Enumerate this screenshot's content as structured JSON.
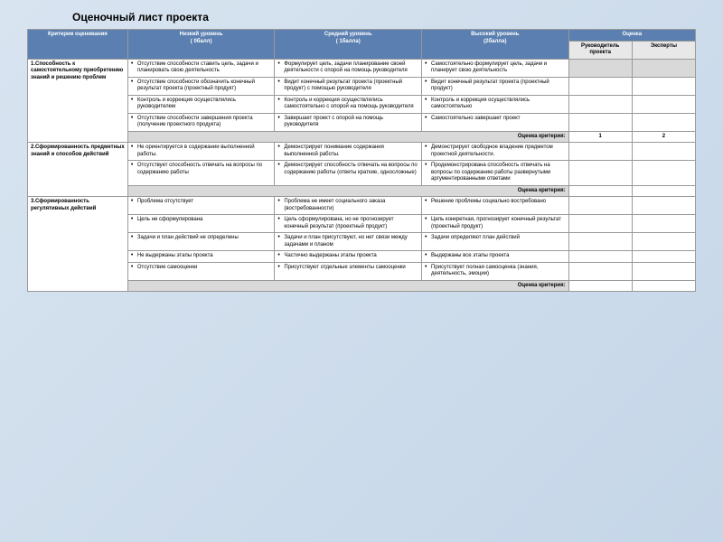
{
  "title": "Оценочный лист проекта",
  "headers": {
    "criteria": "Критерии оценивания",
    "low": "Низкий уровень",
    "low_pts": "( 0балл)",
    "mid": "Средний уровень",
    "mid_pts": "( 1балла)",
    "high": "Высокий уровень",
    "high_pts": "(2балла)",
    "eval": "Оценка",
    "eval_lead": "Руководитель проекта",
    "eval_exp": "Эксперты"
  },
  "score_label": "Оценка критерия:",
  "one": "1",
  "two": "2",
  "sections": [
    {
      "criteria": "1.Способность к самостоятельному приобретению знаний и решению проблем",
      "rows": [
        {
          "low": "Отсутствие способности  ставить цель, задачи и планировать свою деятельность",
          "mid": "Формулирует цель, задачи планирование своей деятельности с опорой на помощь руководителя",
          "high": "Самостоятельно формулирует цель, задачи и планирует свою деятельность"
        },
        {
          "low": "Отсутствие способности обозначить конечный результат проекта (проектный продукт)",
          "mid": "Видит конечный результат проекта (проектный продукт) с  помощью руководителя",
          "high": "Видит конечный результат проекта (проектный продукт)"
        },
        {
          "low": "Контроль и коррекция осуществлялись руководителем",
          "mid": "Контроль и коррекция осуществлялись самостоятельно с опорой на помощь руководителя",
          "high": "Контроль и коррекция осуществлялись самостоятельно"
        },
        {
          "low": "Отсутствие способности завершения проекта (получение проектного продукта)",
          "mid": "Завершает проект с опорой на помощь руководителя",
          "high": "Самостоятельно завершает проект"
        }
      ]
    },
    {
      "criteria": "2.Сформированность предметных знаний и способов действий",
      "rows": [
        {
          "low": "Не ориентируется в содержании выполненной работы.",
          "mid": "Демонстрирует  понимание содержания выполненной работы.",
          "high": "Демонстрирует свободное владение предметом проектной деятельности."
        },
        {
          "low": "Отсутствует  способность отвечать на вопросы по содержанию работы",
          "mid": "Демонстрирует способность отвечать на вопросы по содержанию работы (ответы краткие, односложные)",
          "high": "Продемонстрирована способность отвечать на вопросы по содержанию работы развернутыми аргументированными ответами"
        }
      ]
    },
    {
      "criteria": "3.Сформированность регулятивных действий",
      "rows": [
        {
          "low": "Проблема отсутствует",
          "mid": "Проблема не имеет социального заказа  (востребованности)",
          "high": "Решение проблемы социально востребовано"
        },
        {
          "low": "Цель не сформулирована",
          "mid": "Цель сформулирована, но не прогнозирует конечный результат (проектный продукт)",
          "high": "Цель конкретная, прогнозирует конечный результат (проектный продукт)"
        },
        {
          "low": "Задачи и  план действий не определены",
          "mid": "Задачи и план присутствуют, но нет связи между задачами и планом",
          "high": "Задачи определяют план действий"
        },
        {
          "low": "Не выдержаны этапы проекта",
          "mid": "Частично выдержаны  этапы проекта",
          "high": "Выдержаны все этапы проекта"
        },
        {
          "low": "Отсутствие самооценки",
          "mid": "Присутствуют отдельные элементы самооценки",
          "high": "Присутствует полная самооценка (знания, деятельность, эмоции)"
        }
      ]
    }
  ]
}
